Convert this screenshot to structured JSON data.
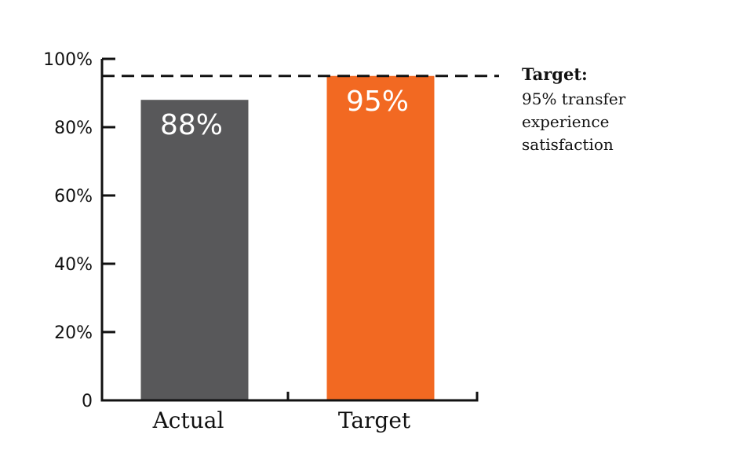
{
  "chart_data": {
    "type": "bar",
    "categories": [
      "Actual",
      "Target"
    ],
    "values": [
      88,
      95
    ],
    "value_labels": [
      "88%",
      "95%"
    ],
    "ylim": [
      0,
      100
    ],
    "yticks": [
      0,
      20,
      40,
      60,
      80,
      100
    ],
    "ytick_labels": [
      "0",
      "20%",
      "40%",
      "60%",
      "80%",
      "100%"
    ],
    "colors": [
      "#58585a",
      "#f26922"
    ],
    "grid": false,
    "reference_line": {
      "value": 95,
      "style": "dashed",
      "color": "#111111"
    },
    "annotation": {
      "title": "Target:",
      "lines": [
        "95% transfer",
        "experience",
        "satisfaction"
      ]
    }
  }
}
